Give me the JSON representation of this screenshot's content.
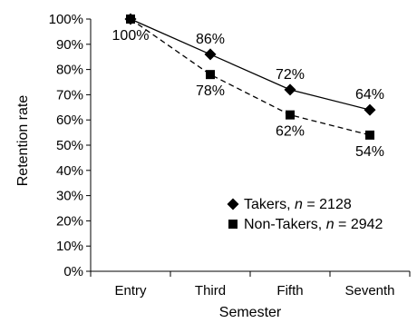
{
  "chart_data": {
    "type": "line",
    "title": "",
    "xlabel": "Semester",
    "ylabel": "Retention rate",
    "categories": [
      "Entry",
      "Third",
      "Fifth",
      "Seventh"
    ],
    "ylim": [
      0,
      100
    ],
    "yticks": [
      "0%",
      "10%",
      "20%",
      "30%",
      "40%",
      "50%",
      "60%",
      "70%",
      "80%",
      "90%",
      "100%"
    ],
    "grid": false,
    "legend_position": "lower-right",
    "series": [
      {
        "name": "Takers, n = 2128",
        "name_prefix": "Takers, ",
        "name_var": "n",
        "name_suffix": " = 2128",
        "marker": "diamond",
        "line_style": "solid",
        "color": "#000000",
        "values": [
          100,
          86,
          72,
          64
        ],
        "labels": [
          "100%",
          "86%",
          "72%",
          "64%"
        ]
      },
      {
        "name": "Non-Takers, n = 2942",
        "name_prefix": "Non-Takers, ",
        "name_var": "n",
        "name_suffix": " = 2942",
        "marker": "square",
        "line_style": "dashed",
        "color": "#000000",
        "values": [
          100,
          78,
          62,
          54
        ],
        "labels": [
          "",
          "78%",
          "62%",
          "54%"
        ]
      }
    ]
  }
}
